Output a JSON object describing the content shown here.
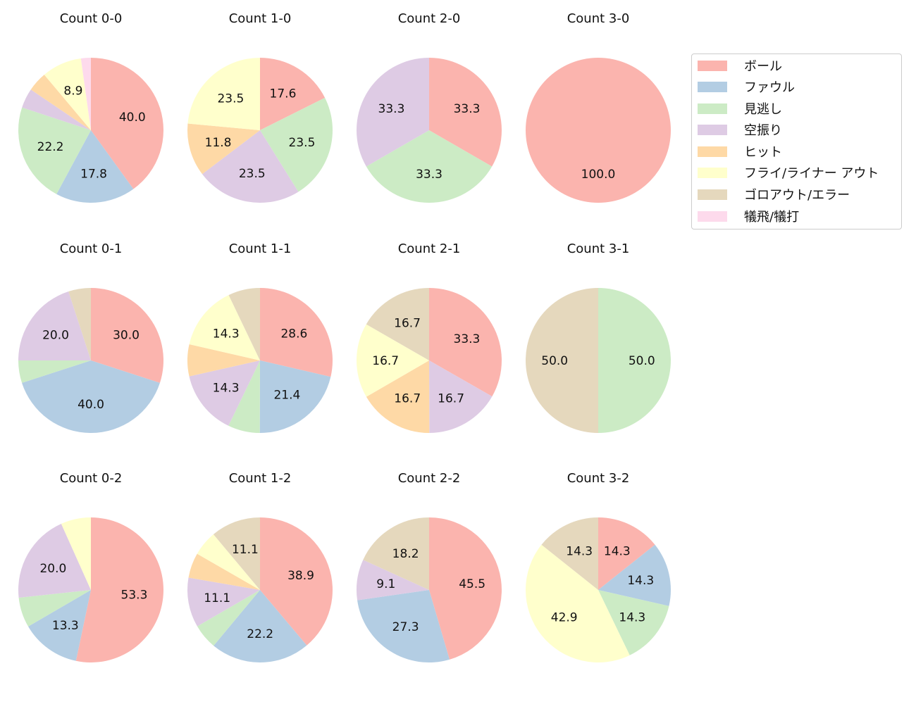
{
  "legend": {
    "items": [
      {
        "label": "ボール",
        "color": "#fbb4ae"
      },
      {
        "label": "ファウル",
        "color": "#b3cde3"
      },
      {
        "label": "見逃し",
        "color": "#ccebc5"
      },
      {
        "label": "空振り",
        "color": "#decbe4"
      },
      {
        "label": "ヒット",
        "color": "#fed9a6"
      },
      {
        "label": "フライ/ライナー アウト",
        "color": "#ffffcc"
      },
      {
        "label": "ゴロアウト/エラー",
        "color": "#e5d8bd"
      },
      {
        "label": "犠飛/犠打",
        "color": "#fddaec"
      }
    ]
  },
  "chart_data": {
    "type": "pie",
    "categories": [
      "ボール",
      "ファウル",
      "見逃し",
      "空振り",
      "ヒット",
      "フライ/ライナー アウト",
      "ゴロアウト/エラー",
      "犠飛/犠打"
    ],
    "colors": [
      "#fbb4ae",
      "#b3cde3",
      "#ccebc5",
      "#decbe4",
      "#fed9a6",
      "#ffffcc",
      "#e5d8bd",
      "#fddaec"
    ],
    "label_threshold_note": "slices below ~8% are drawn without labels",
    "charts": [
      {
        "title": "Count 0-0",
        "row": 0,
        "col": 0,
        "values": [
          40.0,
          17.8,
          22.2,
          4.4,
          4.4,
          8.9,
          0,
          2.2
        ],
        "labels": [
          "40.0",
          "17.8",
          "22.2",
          "",
          "",
          "8.9",
          "",
          ""
        ]
      },
      {
        "title": "Count 1-0",
        "row": 0,
        "col": 1,
        "values": [
          17.6,
          0,
          23.5,
          23.5,
          11.8,
          23.5,
          0,
          0
        ],
        "labels": [
          "17.6",
          "",
          "23.5",
          "23.5",
          "11.8",
          "23.5",
          "",
          ""
        ]
      },
      {
        "title": "Count 2-0",
        "row": 0,
        "col": 2,
        "values": [
          33.3,
          0,
          33.3,
          33.3,
          0,
          0,
          0,
          0
        ],
        "labels": [
          "33.3",
          "",
          "33.3",
          "33.3",
          "",
          "",
          "",
          ""
        ]
      },
      {
        "title": "Count 3-0",
        "row": 0,
        "col": 3,
        "values": [
          100.0,
          0,
          0,
          0,
          0,
          0,
          0,
          0
        ],
        "labels": [
          "100.0",
          "",
          "",
          "",
          "",
          "",
          "",
          ""
        ]
      },
      {
        "title": "Count 0-1",
        "row": 1,
        "col": 0,
        "values": [
          30.0,
          40.0,
          5.0,
          20.0,
          0,
          0,
          5.0,
          0
        ],
        "labels": [
          "30.0",
          "40.0",
          "",
          "20.0",
          "",
          "",
          "",
          ""
        ]
      },
      {
        "title": "Count 1-1",
        "row": 1,
        "col": 1,
        "values": [
          28.6,
          21.4,
          7.1,
          14.3,
          7.1,
          14.3,
          7.1,
          0
        ],
        "labels": [
          "28.6",
          "21.4",
          "",
          "14.3",
          "",
          "14.3",
          "",
          ""
        ]
      },
      {
        "title": "Count 2-1",
        "row": 1,
        "col": 2,
        "values": [
          33.3,
          0,
          0,
          16.7,
          16.7,
          16.7,
          16.7,
          0
        ],
        "labels": [
          "33.3",
          "",
          "",
          "16.7",
          "16.7",
          "16.7",
          "16.7",
          ""
        ]
      },
      {
        "title": "Count 3-1",
        "row": 1,
        "col": 3,
        "values": [
          0,
          0,
          50.0,
          0,
          0,
          0,
          50.0,
          0
        ],
        "labels": [
          "",
          "",
          "50.0",
          "",
          "",
          "",
          "50.0",
          ""
        ]
      },
      {
        "title": "Count 0-2",
        "row": 2,
        "col": 0,
        "values": [
          53.3,
          13.3,
          6.7,
          20.0,
          0,
          6.7,
          0,
          0
        ],
        "labels": [
          "53.3",
          "13.3",
          "",
          "20.0",
          "",
          "",
          "",
          ""
        ]
      },
      {
        "title": "Count 1-2",
        "row": 2,
        "col": 1,
        "values": [
          38.9,
          22.2,
          5.6,
          11.1,
          5.6,
          5.6,
          11.1,
          0
        ],
        "labels": [
          "38.9",
          "22.2",
          "",
          "11.1",
          "",
          "",
          "11.1",
          ""
        ]
      },
      {
        "title": "Count 2-2",
        "row": 2,
        "col": 2,
        "values": [
          45.5,
          27.3,
          0,
          9.1,
          0,
          0,
          18.2,
          0
        ],
        "labels": [
          "45.5",
          "27.3",
          "",
          "9.1",
          "",
          "",
          "18.2",
          ""
        ]
      },
      {
        "title": "Count 3-2",
        "row": 2,
        "col": 3,
        "values": [
          14.3,
          14.3,
          14.3,
          0,
          0,
          42.9,
          14.3,
          0
        ],
        "labels": [
          "14.3",
          "14.3",
          "14.3",
          "",
          "",
          "42.9",
          "14.3",
          ""
        ]
      }
    ]
  }
}
